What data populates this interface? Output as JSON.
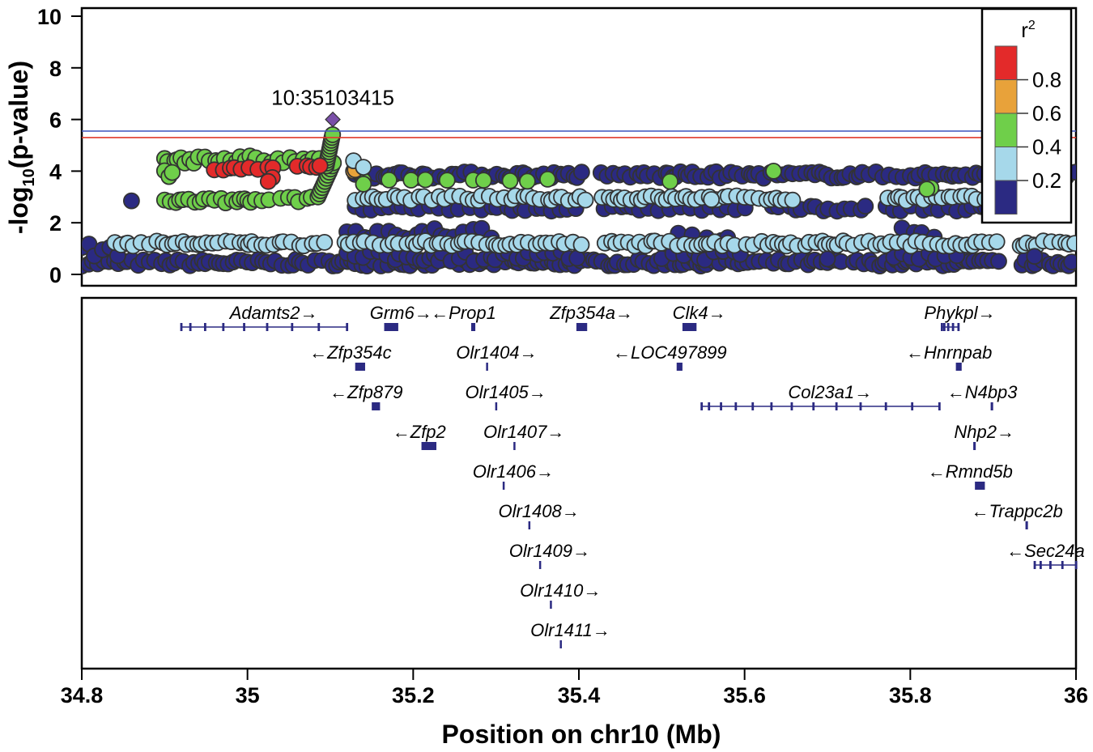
{
  "chart_data": {
    "type": "scatter",
    "title": "",
    "xlabel": "Position on chr10 (Mb)",
    "ylabel": "-log10(p-value)",
    "xlim": [
      34.8,
      36.0
    ],
    "ylim": [
      0,
      10
    ],
    "x_ticks": [
      "34.8",
      "35",
      "35.2",
      "35.4",
      "35.6",
      "35.8",
      "36"
    ],
    "y_ticks": [
      "0",
      "2",
      "4",
      "6",
      "8",
      "10"
    ],
    "lead_snp": {
      "label": "10:35103415",
      "x": 35.103,
      "y": 6.0,
      "color": "#7a4fa8"
    },
    "threshold_lines": [
      {
        "name": "suggestive-blue",
        "y": 5.55,
        "color": "#4a5fc0"
      },
      {
        "name": "significant-red",
        "y": 5.3,
        "color": "#e0392a"
      }
    ],
    "legend": {
      "title": "r2",
      "bins": [
        {
          "label": "0.8",
          "range": "0.8-1.0",
          "color": "#e32a2a"
        },
        {
          "label": "0.6",
          "range": "0.6-0.8",
          "color": "#e8a23a"
        },
        {
          "label": "0.4",
          "range": "0.4-0.6",
          "color": "#6fcf4a"
        },
        {
          "label": "0.2",
          "range": "0.2-0.4",
          "color": "#a6d8ea"
        },
        {
          "label": "",
          "range": "0.0-0.2",
          "color": "#2b2a82"
        }
      ]
    },
    "series": [
      {
        "name": "r2 0.0-0.2 (bottom band)",
        "color": "#2b2a82",
        "x_range": [
          34.8,
          36.0
        ],
        "y_approx": 0.5
      },
      {
        "name": "r2 0.2-0.4 (band ~1.2)",
        "color": "#a6d8ea",
        "x_range": [
          34.85,
          36.0
        ],
        "y_approx": 1.2
      },
      {
        "name": "r2 0.4-0.6 (upper cluster)",
        "color": "#6fcf4a",
        "x_range": [
          34.9,
          35.1
        ],
        "y_approx": [
          2.8,
          4.5
        ]
      },
      {
        "name": "r2 0.8-1.0 (red cluster)",
        "color": "#e32a2a",
        "x_range": [
          34.96,
          35.09
        ],
        "y_approx": 4.1
      },
      {
        "name": "r2 0.6-0.8",
        "color": "#e8a23a",
        "x": 35.13,
        "y": 4.0
      },
      {
        "name": "r2 0.0-0.2 (band ~3.8)",
        "color": "#2b2a82",
        "x_range": [
          35.13,
          36.0
        ],
        "y_approx": 3.8
      },
      {
        "name": "r2 0.2-0.4 (band ~2.9)",
        "color": "#a6d8ea",
        "x_range": [
          35.13,
          35.95
        ],
        "y_approx": 2.9
      }
    ],
    "genes": [
      {
        "name": "Adamts2",
        "strand": "+",
        "start": 34.92,
        "end": 35.12,
        "row": 0
      },
      {
        "name": "Grm6",
        "strand": "+",
        "start": 35.165,
        "end": 35.182,
        "row": 0
      },
      {
        "name": "Prop1",
        "strand": "-",
        "start": 35.27,
        "end": 35.275,
        "row": 0
      },
      {
        "name": "Zfp354a",
        "strand": "+",
        "start": 35.397,
        "end": 35.41,
        "row": 0
      },
      {
        "name": "Clk4",
        "strand": "+",
        "start": 35.525,
        "end": 35.542,
        "row": 0
      },
      {
        "name": "Phykpl",
        "strand": "+",
        "start": 35.838,
        "end": 35.858,
        "row": 0
      },
      {
        "name": "Zfp354c",
        "strand": "-",
        "start": 35.13,
        "end": 35.142,
        "row": 1
      },
      {
        "name": "Olr1404",
        "strand": "+",
        "start": 35.288,
        "end": 35.29,
        "row": 1
      },
      {
        "name": "LOC497899",
        "strand": "-",
        "start": 35.518,
        "end": 35.525,
        "row": 1
      },
      {
        "name": "Hnrnpab",
        "strand": "-",
        "start": 35.855,
        "end": 35.862,
        "row": 1
      },
      {
        "name": "Zfp879",
        "strand": "-",
        "start": 35.15,
        "end": 35.16,
        "row": 2
      },
      {
        "name": "Olr1405",
        "strand": "+",
        "start": 35.299,
        "end": 35.301,
        "row": 2
      },
      {
        "name": "Col23a1",
        "strand": "+",
        "start": 35.548,
        "end": 35.835,
        "row": 2
      },
      {
        "name": "N4bp3",
        "strand": "-",
        "start": 35.897,
        "end": 35.9,
        "row": 2
      },
      {
        "name": "Zfp2",
        "strand": "-",
        "start": 35.21,
        "end": 35.228,
        "row": 3
      },
      {
        "name": "Olr1407",
        "strand": "+",
        "start": 35.321,
        "end": 35.323,
        "row": 3
      },
      {
        "name": "Nhp2",
        "strand": "+",
        "start": 35.876,
        "end": 35.879,
        "row": 3
      },
      {
        "name": "Olr1406",
        "strand": "+",
        "start": 35.308,
        "end": 35.31,
        "row": 4
      },
      {
        "name": "Rmnd5b",
        "strand": "-",
        "start": 35.878,
        "end": 35.89,
        "row": 4
      },
      {
        "name": "Olr1408",
        "strand": "+",
        "start": 35.339,
        "end": 35.341,
        "row": 5
      },
      {
        "name": "Trappc2b",
        "strand": "-",
        "start": 35.939,
        "end": 35.942,
        "row": 5
      },
      {
        "name": "Olr1409",
        "strand": "+",
        "start": 35.352,
        "end": 35.354,
        "row": 6
      },
      {
        "name": "Sec24a",
        "strand": "-",
        "start": 35.95,
        "end": 36.0,
        "row": 6
      },
      {
        "name": "Olr1410",
        "strand": "+",
        "start": 35.365,
        "end": 35.367,
        "row": 7
      },
      {
        "name": "Olr1411",
        "strand": "+",
        "start": 35.377,
        "end": 35.379,
        "row": 8
      }
    ]
  }
}
